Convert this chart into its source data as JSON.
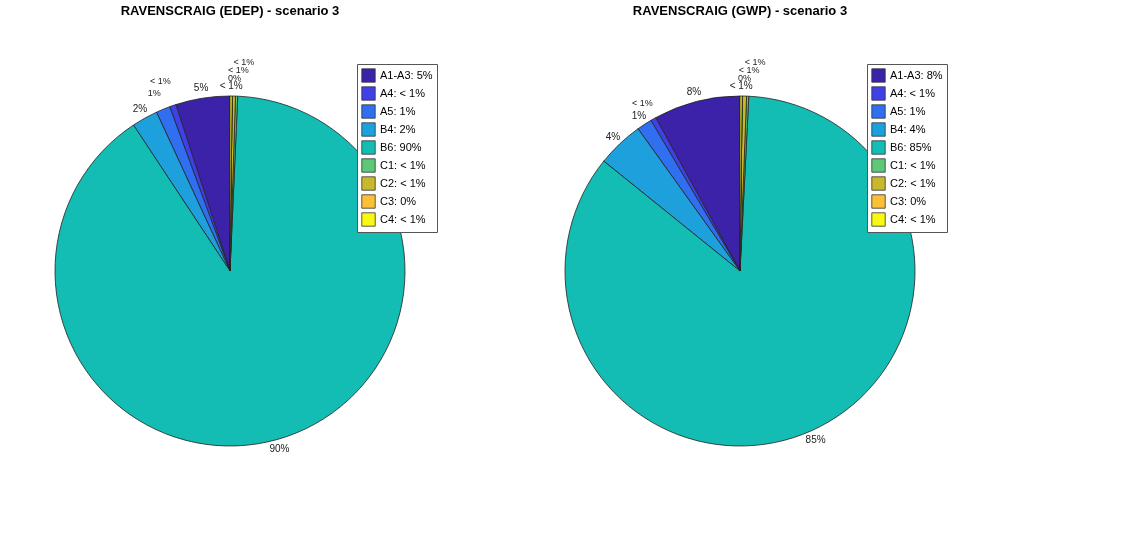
{
  "chart_data": [
    {
      "type": "pie",
      "title": "RAVENSCRAIG (EDEP) - scenario  3",
      "legend": "top right",
      "categories": [
        "A1-A3: 5%",
        "A4: < 1%",
        "A5: 1%",
        "B4: 2%",
        "B6: 90%",
        "C1: < 1%",
        "C2: < 1%",
        "C3: 0%",
        "C4: < 1%"
      ],
      "values": [
        5,
        0.6,
        1.3,
        2.4,
        90,
        0.2,
        0.3,
        0,
        0.2
      ],
      "value_labels": [
        "5%",
        "< 1%",
        "1%",
        "2%",
        "90%",
        "< 1%",
        "< 1%",
        "0%",
        "< 1%"
      ],
      "colors": [
        "#3b22a8",
        "#4040e8",
        "#2f6ff0",
        "#1ea0dc",
        "#14bdb4",
        "#5ec878",
        "#c8b82c",
        "#fcc038",
        "#f8f814"
      ]
    },
    {
      "type": "pie",
      "title": "RAVENSCRAIG (GWP) - scenario  3",
      "legend": "top right",
      "categories": [
        "A1-A3: 8%",
        "A4: < 1%",
        "A5: 1%",
        "B4: 4%",
        "B6: 85%",
        "C1: < 1%",
        "C2: < 1%",
        "C3: 0%",
        "C4: < 1%"
      ],
      "values": [
        8,
        0.5,
        1.4,
        4.3,
        85,
        0.2,
        0.4,
        0,
        0.2
      ],
      "value_labels": [
        "8%",
        "< 1%",
        "1%",
        "4%",
        "85%",
        "< 1%",
        "< 1%",
        "0%",
        "< 1%"
      ],
      "colors": [
        "#3b22a8",
        "#4040e8",
        "#2f6ff0",
        "#1ea0dc",
        "#14bdb4",
        "#5ec878",
        "#c8b82c",
        "#fcc038",
        "#f8f814"
      ]
    }
  ]
}
